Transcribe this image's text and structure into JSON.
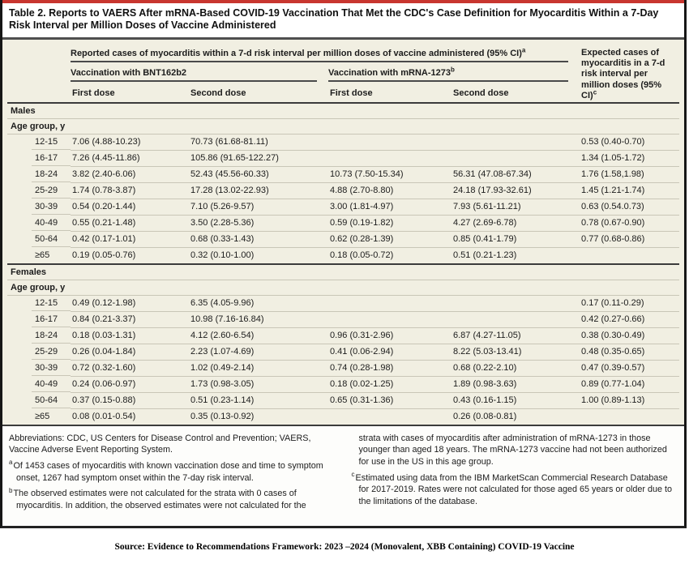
{
  "colors": {
    "accent_red": "#c8362f",
    "table_background": "#f1efe2",
    "heavy_rule": "#3b3b3b",
    "light_rule": "#c9c6b7",
    "frame_border": "#161616"
  },
  "title": "Table 2. Reports to VAERS After mRNA-Based COVID-19 Vaccination That Met the CDC's Case Definition for Myocarditis Within a 7-Day Risk Interval per Million Doses of Vaccine Administered",
  "table": {
    "header": {
      "spanner": "Reported cases of myocarditis within a 7-d risk interval per million doses of vaccine administered (95% CI)",
      "spanner_sup": "a",
      "group_bnt": "Vaccination with BNT162b2",
      "group_mrna": "Vaccination with mRNA-1273",
      "group_mrna_sup": "b",
      "bnt_first": "First dose",
      "bnt_second": "Second dose",
      "mrna_first": "First dose",
      "mrna_second": "Second dose",
      "expected": "Expected cases of myocarditis in a 7-d risk interval per million doses (95% CI)",
      "expected_sup": "c"
    },
    "sections": [
      {
        "label": "Males",
        "subheader": "Age group, y",
        "rows": [
          {
            "age": "12-15",
            "bnt1": "7.06 (4.88-10.23)",
            "bnt2": "70.73 (61.68-81.11)",
            "mrna1": "",
            "mrna2": "",
            "expected": "0.53 (0.40-0.70)"
          },
          {
            "age": "16-17",
            "bnt1": "7.26 (4.45-11.86)",
            "bnt2": "105.86 (91.65-122.27)",
            "mrna1": "",
            "mrna2": "",
            "expected": "1.34 (1.05-1.72)"
          },
          {
            "age": "18-24",
            "bnt1": "3.82 (2.40-6.06)",
            "bnt2": "52.43 (45.56-60.33)",
            "mrna1": "10.73 (7.50-15.34)",
            "mrna2": "56.31 (47.08-67.34)",
            "expected": "1.76 (1.58,1.98)"
          },
          {
            "age": "25-29",
            "bnt1": "1.74 (0.78-3.87)",
            "bnt2": "17.28 (13.02-22.93)",
            "mrna1": "4.88 (2.70-8.80)",
            "mrna2": "24.18 (17.93-32.61)",
            "expected": "1.45 (1.21-1.74)"
          },
          {
            "age": "30-39",
            "bnt1": "0.54 (0.20-1.44)",
            "bnt2": "7.10 (5.26-9.57)",
            "mrna1": "3.00 (1.81-4.97)",
            "mrna2": "7.93 (5.61-11.21)",
            "expected": "0.63 (0.54.0.73)"
          },
          {
            "age": "40-49",
            "bnt1": "0.55 (0.21-1.48)",
            "bnt2": "3.50 (2.28-5.36)",
            "mrna1": "0.59 (0.19-1.82)",
            "mrna2": "4.27 (2.69-6.78)",
            "expected": "0.78 (0.67-0.90)"
          },
          {
            "age": "50-64",
            "bnt1": "0.42 (0.17-1.01)",
            "bnt2": "0.68 (0.33-1.43)",
            "mrna1": "0.62 (0.28-1.39)",
            "mrna2": "0.85 (0.41-1.79)",
            "expected": "0.77 (0.68-0.86)"
          },
          {
            "age": "≥65",
            "bnt1": "0.19 (0.05-0.76)",
            "bnt2": "0.32 (0.10-1.00)",
            "mrna1": "0.18 (0.05-0.72)",
            "mrna2": "0.51 (0.21-1.23)",
            "expected": ""
          }
        ]
      },
      {
        "label": "Females",
        "subheader": "Age group, y",
        "rows": [
          {
            "age": "12-15",
            "bnt1": "0.49 (0.12-1.98)",
            "bnt2": "6.35 (4.05-9.96)",
            "mrna1": "",
            "mrna2": "",
            "expected": "0.17 (0.11-0.29)"
          },
          {
            "age": "16-17",
            "bnt1": "0.84 (0.21-3.37)",
            "bnt2": "10.98 (7.16-16.84)",
            "mrna1": "",
            "mrna2": "",
            "expected": "0.42 (0.27-0.66)"
          },
          {
            "age": "18-24",
            "bnt1": "0.18 (0.03-1.31)",
            "bnt2": "4.12 (2.60-6.54)",
            "mrna1": "0.96 (0.31-2.96)",
            "mrna2": "6.87 (4.27-11.05)",
            "expected": "0.38 (0.30-0.49)"
          },
          {
            "age": "25-29",
            "bnt1": "0.26 (0.04-1.84)",
            "bnt2": "2.23 (1.07-4.69)",
            "mrna1": "0.41 (0.06-2.94)",
            "mrna2": "8.22 (5.03-13.41)",
            "expected": "0.48 (0.35-0.65)"
          },
          {
            "age": "30-39",
            "bnt1": "0.72 (0.32-1.60)",
            "bnt2": "1.02 (0.49-2.14)",
            "mrna1": "0.74 (0.28-1.98)",
            "mrna2": "0.68 (0.22-2.10)",
            "expected": "0.47 (0.39-0.57)"
          },
          {
            "age": "40-49",
            "bnt1": "0.24 (0.06-0.97)",
            "bnt2": "1.73 (0.98-3.05)",
            "mrna1": "0.18 (0.02-1.25)",
            "mrna2": "1.89 (0.98-3.63)",
            "expected": "0.89 (0.77-1.04)"
          },
          {
            "age": "50-64",
            "bnt1": "0.37 (0.15-0.88)",
            "bnt2": "0.51 (0.23-1.14)",
            "mrna1": "0.65 (0.31-1.36)",
            "mrna2": "0.43 (0.16-1.15)",
            "expected": "1.00 (0.89-1.13)"
          },
          {
            "age": "≥65",
            "bnt1": "0.08 (0.01-0.54)",
            "bnt2": "0.35 (0.13-0.92)",
            "mrna1": "",
            "mrna2": "0.26 (0.08-0.81)",
            "expected": ""
          }
        ]
      }
    ]
  },
  "footnotes": {
    "left": [
      {
        "marker": "",
        "style": "plain",
        "text": "Abbreviations: CDC, US Centers for Disease Control and Prevention; VAERS, Vaccine Adverse Event Reporting System."
      },
      {
        "marker": "a",
        "style": "hang",
        "text": "Of 1453 cases of myocarditis with known vaccination dose and time to symptom onset, 1267 had symptom onset within the 7-day risk interval."
      },
      {
        "marker": "b",
        "style": "hang",
        "text": "The observed estimates were not calculated for the strata with 0 cases of myocarditis. In addition, the observed estimates were not calculated for the"
      }
    ],
    "right": [
      {
        "marker": "",
        "style": "cont",
        "text": "strata with cases of myocarditis after administration of mRNA-1273 in those younger than aged 18 years. The mRNA-1273 vaccine had not been authorized for use in the US in this age group."
      },
      {
        "marker": "c",
        "style": "hang",
        "text": "Estimated using data from the IBM MarketScan Commercial Research Database for 2017-2019. Rates were not calculated for those aged 65 years or older due to the limitations of the database."
      }
    ]
  },
  "source_line": "Source: Evidence to Recommendations Framework: 2023 –2024 (Monovalent, XBB Containing) COVID-19 Vaccine"
}
